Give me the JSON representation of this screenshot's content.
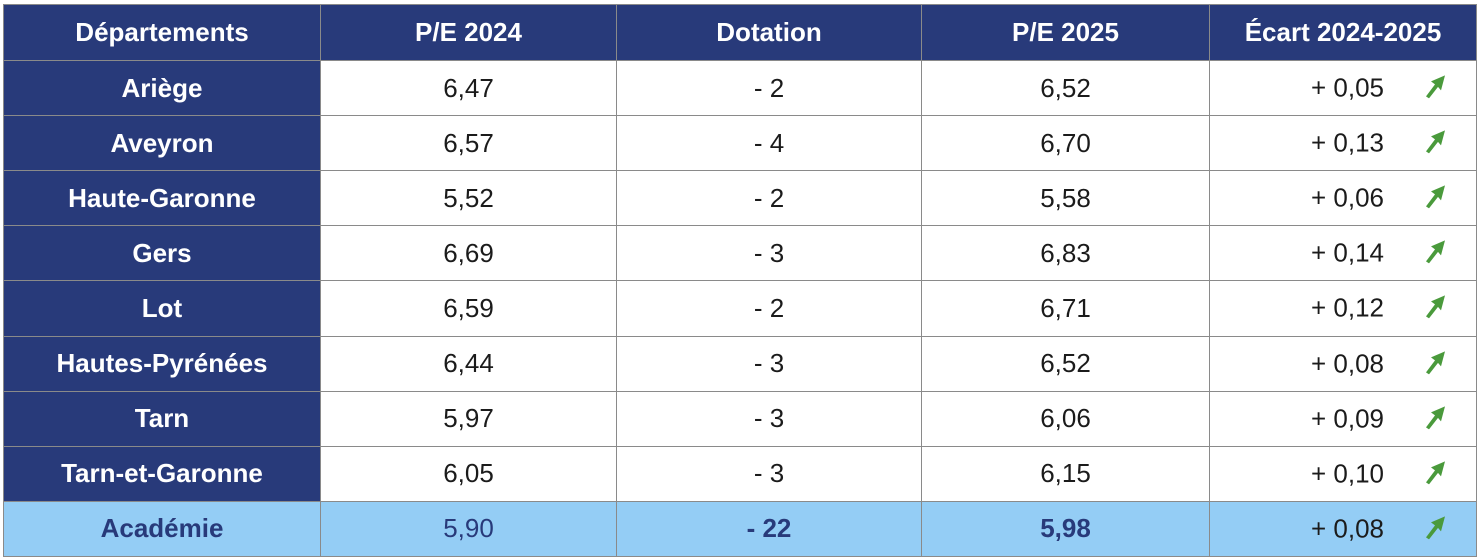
{
  "table": {
    "headers": [
      "Départements",
      "P/E 2024",
      "Dotation",
      "P/E 2025",
      "Écart 2024-2025"
    ],
    "rows": [
      {
        "dept": "Ariège",
        "pe2024": "6,47",
        "dotation": "- 2",
        "pe2025": "6,52",
        "ecart": "+ 0,05",
        "trend_icon": "arrow-up-right-icon"
      },
      {
        "dept": "Aveyron",
        "pe2024": "6,57",
        "dotation": "- 4",
        "pe2025": "6,70",
        "ecart": "+ 0,13",
        "trend_icon": "arrow-up-right-icon"
      },
      {
        "dept": "Haute-Garonne",
        "pe2024": "5,52",
        "dotation": "- 2",
        "pe2025": "5,58",
        "ecart": "+ 0,06",
        "trend_icon": "arrow-up-right-icon"
      },
      {
        "dept": "Gers",
        "pe2024": "6,69",
        "dotation": "- 3",
        "pe2025": "6,83",
        "ecart": "+ 0,14",
        "trend_icon": "arrow-up-right-icon"
      },
      {
        "dept": "Lot",
        "pe2024": "6,59",
        "dotation": "- 2",
        "pe2025": "6,71",
        "ecart": "+ 0,12",
        "trend_icon": "arrow-up-right-icon"
      },
      {
        "dept": "Hautes-Pyrénées",
        "pe2024": "6,44",
        "dotation": "- 3",
        "pe2025": "6,52",
        "ecart": "+ 0,08",
        "trend_icon": "arrow-up-right-icon"
      },
      {
        "dept": "Tarn",
        "pe2024": "5,97",
        "dotation": "- 3",
        "pe2025": "6,06",
        "ecart": "+ 0,09",
        "trend_icon": "arrow-up-right-icon"
      },
      {
        "dept": "Tarn-et-Garonne",
        "pe2024": "6,05",
        "dotation": "- 3",
        "pe2025": "6,15",
        "ecart": "+ 0,10",
        "trend_icon": "arrow-up-right-icon"
      }
    ],
    "total": {
      "dept": "Académie",
      "pe2024": "5,90",
      "dotation": "- 22",
      "pe2025": "5,98",
      "ecart": "+ 0,08",
      "trend_icon": "arrow-up-right-icon"
    }
  },
  "colors": {
    "header_bg": "#283a7a",
    "total_row_bg": "#94cdf5",
    "arrow_green": "#4a9a3c"
  }
}
